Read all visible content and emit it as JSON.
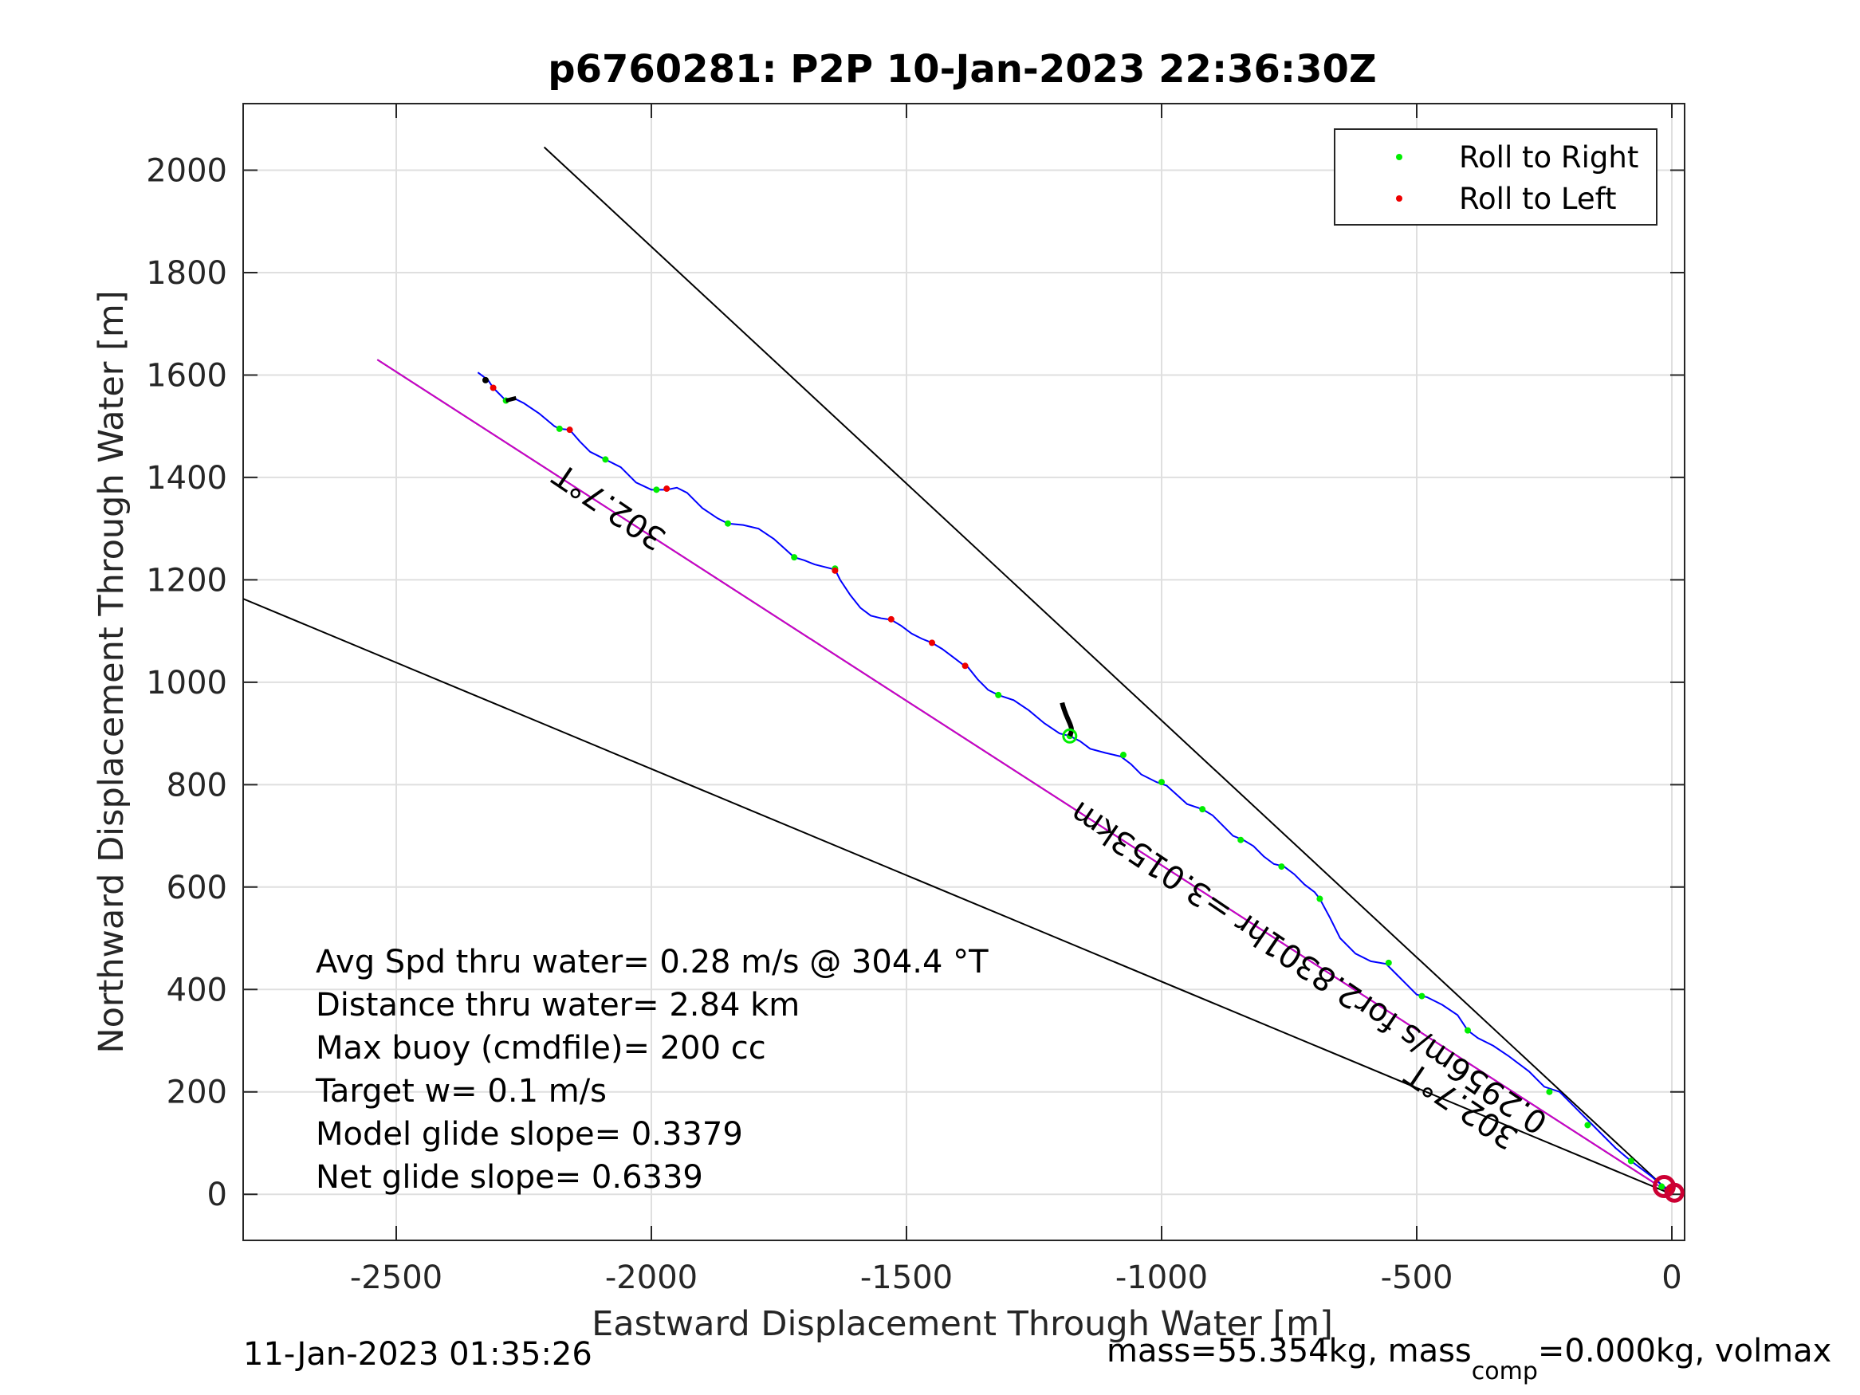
{
  "chart_data": {
    "type": "line",
    "title": "p6760281: P2P 10-Jan-2023 22:36:30Z",
    "xlabel": "Eastward Displacement Through Water [m]",
    "ylabel": "Northward Displacement Through Water [m]",
    "xlim": [
      -2800,
      25
    ],
    "ylim": [
      -90,
      2130
    ],
    "xticks": [
      -2500,
      -2000,
      -1500,
      -1000,
      -500,
      0
    ],
    "yticks": [
      0,
      200,
      400,
      600,
      800,
      1000,
      1200,
      1400,
      1600,
      1800,
      2000
    ],
    "grid": true,
    "legend": {
      "placement": "top-right",
      "entries": [
        {
          "label": "Roll to Right",
          "color": "#00ee00"
        },
        {
          "label": "Roll to Left",
          "color": "#ee0000"
        }
      ]
    },
    "colors": {
      "track": "#0000ff",
      "model_line": "#cc00cc",
      "bounds": "#000000",
      "roll_right": "#00ee00",
      "roll_left": "#ee0000",
      "start_marker": "#cc0033"
    },
    "lines": [
      {
        "x": [
          0,
          -2210
        ],
        "y": [
          0,
          2045
        ]
      },
      {
        "x": [
          0,
          -2800
        ],
        "y": [
          0,
          1163
        ]
      },
      {
        "x": [
          0,
          -2537
        ],
        "y": [
          0,
          1630
        ]
      }
    ],
    "track": {
      "x": [
        -2340,
        -2320,
        -2310,
        -2295,
        -2285,
        -2270,
        -2250,
        -2220,
        -2190,
        -2180,
        -2160,
        -2140,
        -2120,
        -2090,
        -2060,
        -2030,
        -2000,
        -1970,
        -1950,
        -1930,
        -1900,
        -1870,
        -1850,
        -1820,
        -1790,
        -1760,
        -1740,
        -1720,
        -1700,
        -1680,
        -1660,
        -1640,
        -1630,
        -1610,
        -1590,
        -1570,
        -1550,
        -1530,
        -1510,
        -1490,
        -1470,
        -1450,
        -1430,
        -1410,
        -1390,
        -1380,
        -1360,
        -1340,
        -1320,
        -1290,
        -1260,
        -1230,
        -1200,
        -1180,
        -1160,
        -1140,
        -1110,
        -1080,
        -1060,
        -1040,
        -1010,
        -990,
        -970,
        -950,
        -920,
        -900,
        -880,
        -860,
        -840,
        -820,
        -800,
        -780,
        -760,
        -740,
        -720,
        -700,
        -690,
        -670,
        -650,
        -620,
        -590,
        -560,
        -540,
        -520,
        -500,
        -480,
        -450,
        -420,
        -400,
        -380,
        -350,
        -320,
        -300,
        -280,
        -250,
        -220,
        -200,
        -180,
        -160,
        -140,
        -110,
        -80,
        -60,
        -40,
        -20,
        0
      ],
      "y": [
        1605,
        1590,
        1575,
        1560,
        1550,
        1555,
        1545,
        1525,
        1500,
        1495,
        1493,
        1470,
        1450,
        1435,
        1420,
        1390,
        1376,
        1376,
        1380,
        1370,
        1340,
        1320,
        1310,
        1307,
        1300,
        1280,
        1262,
        1244,
        1238,
        1230,
        1225,
        1220,
        1200,
        1170,
        1145,
        1130,
        1125,
        1122,
        1110,
        1095,
        1085,
        1077,
        1065,
        1050,
        1035,
        1030,
        1005,
        985,
        975,
        965,
        945,
        920,
        900,
        895,
        885,
        870,
        862,
        855,
        840,
        820,
        805,
        798,
        780,
        762,
        752,
        740,
        720,
        700,
        692,
        680,
        660,
        645,
        640,
        625,
        605,
        590,
        577,
        540,
        500,
        470,
        455,
        450,
        430,
        410,
        390,
        385,
        370,
        350,
        320,
        305,
        290,
        270,
        255,
        240,
        210,
        200,
        180,
        160,
        140,
        120,
        90,
        65,
        50,
        35,
        18,
        5
      ]
    },
    "roll_right_points": {
      "x": [
        -2285,
        -2180,
        -2090,
        -1990,
        -1850,
        -1720,
        -1640,
        -1320,
        -1180,
        -1075,
        -1000,
        -920,
        -845,
        -765,
        -690,
        -555,
        -490,
        -400,
        -240,
        -165,
        -80,
        -20
      ],
      "y": [
        1550,
        1495,
        1435,
        1376,
        1310,
        1244,
        1222,
        975,
        895,
        858,
        805,
        752,
        692,
        640,
        577,
        452,
        387,
        320,
        200,
        135,
        65,
        15
      ]
    },
    "roll_left_points": {
      "x": [
        -2310,
        -2160,
        -1970,
        -1640,
        -1530,
        -1450,
        -1385,
        -5
      ],
      "y": [
        1575,
        1493,
        1378,
        1218,
        1123,
        1077,
        1032,
        10
      ]
    },
    "text_annotations": [
      {
        "text": "302.7°T",
        "x": -2070,
        "y": 1360,
        "angle": 34
      },
      {
        "text": "302.7°T",
        "x": -400,
        "y": 190,
        "angle": 34
      },
      {
        "text": "0.2956m/s for2.8301hr =3.0153km",
        "x": -700,
        "y": 460,
        "angle": 34
      }
    ],
    "stats": [
      "Avg Spd thru water=  0.28 m/s @ 304.4 °T",
      "Distance thru water=  2.84 km",
      "Max buoy (cmdfile)= 200 cc",
      "Target w= 0.1 m/s",
      "Model glide slope= 0.3379",
      "Net glide slope= 0.6339"
    ]
  },
  "footer": {
    "timestamp": "11-Jan-2023 01:35:26",
    "mass_prefix": "mass=55.354kg, mass",
    "mass_sub": "comp",
    "mass_suffix": "=0.000kg, volmax"
  }
}
